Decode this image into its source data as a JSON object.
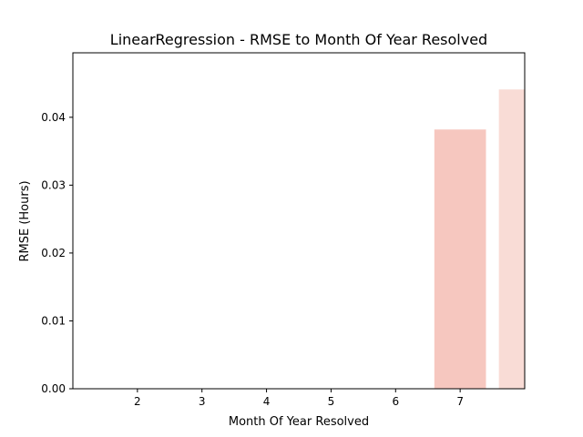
{
  "chart_data": {
    "type": "bar",
    "title": "LinearRegression - RMSE to Month Of Year Resolved",
    "xlabel": "Month Of Year Resolved",
    "ylabel": "RMSE (Hours)",
    "x_ticks": [
      "2",
      "3",
      "4",
      "5",
      "6",
      "7"
    ],
    "y_ticks": [
      "0.00",
      "0.01",
      "0.02",
      "0.03",
      "0.04"
    ],
    "xlim": [
      1,
      8
    ],
    "ylim": [
      0,
      0.0495
    ],
    "bars": [
      {
        "x": 7,
        "value": 0.0382,
        "color": "#f6c7bf"
      },
      {
        "x": 8,
        "value": 0.0441,
        "color": "#f9dcd6"
      }
    ],
    "grid": false,
    "legend": "none"
  }
}
